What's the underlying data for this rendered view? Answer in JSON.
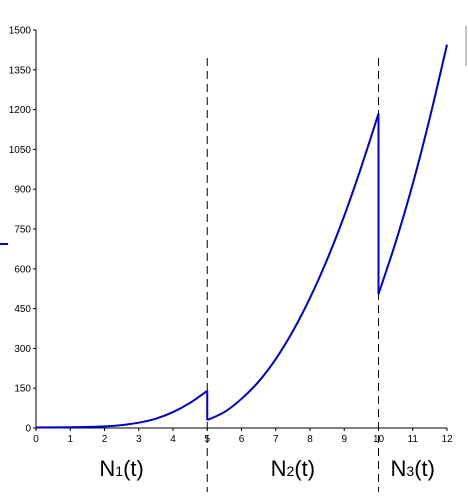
{
  "chart_data": {
    "type": "line",
    "title": "",
    "xlabel": "",
    "ylabel": "",
    "xlim": [
      0,
      12
    ],
    "ylim": [
      0,
      1500
    ],
    "x_ticks": [
      0,
      1,
      2,
      3,
      4,
      5,
      6,
      7,
      8,
      9,
      10,
      11,
      12
    ],
    "y_ticks": [
      0,
      150,
      300,
      450,
      600,
      750,
      900,
      1050,
      1200,
      1350,
      1500
    ],
    "line_color": "#0000cc",
    "dashed_lines_x": [
      5,
      10
    ],
    "grid": false,
    "series": [
      {
        "segment": 1,
        "x": [
          0,
          0.5,
          1,
          1.5,
          2,
          2.5,
          3,
          3.5,
          4,
          4.5,
          5
        ],
        "y": [
          2,
          2.5,
          3,
          4,
          6,
          11,
          20,
          35,
          60,
          95,
          140
        ]
      },
      {
        "segment": 2,
        "x": [
          5,
          5.5,
          6,
          6.5,
          7,
          7.5,
          8,
          8.5,
          9,
          9.5,
          10
        ],
        "y": [
          30,
          60,
          110,
          175,
          260,
          365,
          490,
          635,
          800,
          985,
          1185
        ]
      },
      {
        "segment": 3,
        "x": [
          10,
          10.5,
          11,
          11.5,
          12
        ],
        "y": [
          505,
          700,
          920,
          1170,
          1445
        ]
      }
    ],
    "region_labels": [
      {
        "main": "N",
        "sub": "1",
        "suffix": "(t)",
        "x_center": 2.5
      },
      {
        "main": "N",
        "sub": "2",
        "suffix": "(t)",
        "x_center": 7.5
      },
      {
        "main": "N",
        "sub": "3",
        "suffix": "(t)",
        "x_center": 11.0
      }
    ]
  }
}
